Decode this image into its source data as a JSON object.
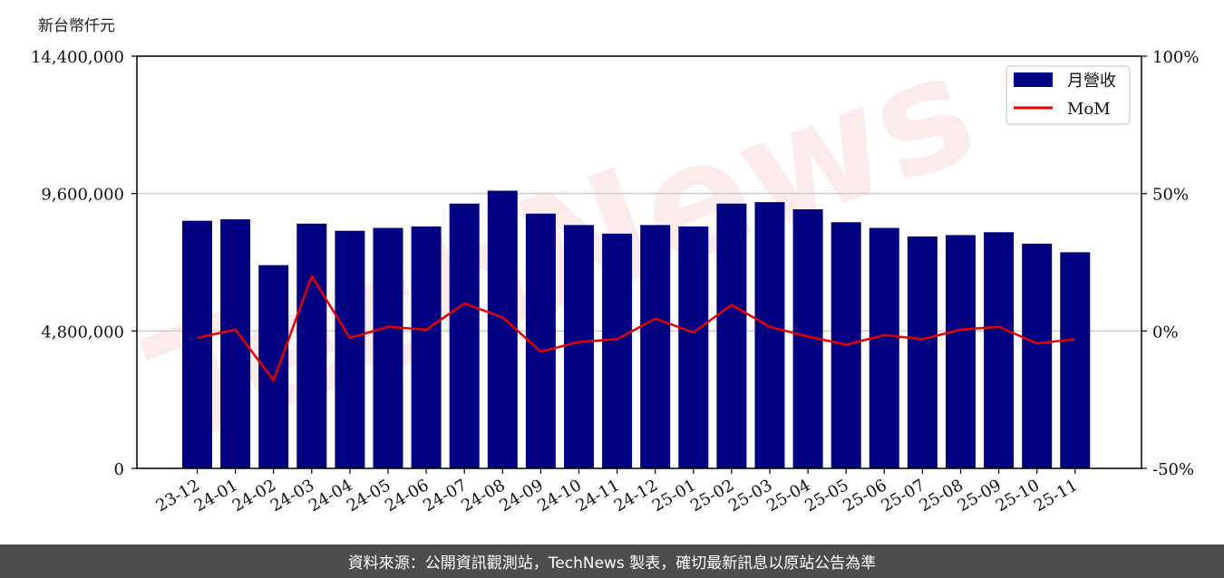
{
  "unit_label": "新台幣仟元",
  "footer_text": "資料來源：公開資訊觀測站，TechNews 製表，確切最新訊息以原站公告為準",
  "watermark": "TechNews",
  "chart_data": {
    "type": "bar",
    "categories": [
      "23-12",
      "24-01",
      "24-02",
      "24-03",
      "24-04",
      "24-05",
      "24-06",
      "24-07",
      "24-08",
      "24-09",
      "24-10",
      "24-11",
      "24-12",
      "25-01",
      "25-02",
      "25-03",
      "25-04",
      "25-05",
      "25-06",
      "25-07",
      "25-08",
      "25-09",
      "25-10",
      "25-11"
    ],
    "series": [
      {
        "name": "月營收",
        "axis": "left",
        "type": "bar",
        "color": "#000080",
        "values": [
          8650000,
          8700000,
          7100000,
          8550000,
          8300000,
          8400000,
          8450000,
          9250000,
          9700000,
          8900000,
          8500000,
          8200000,
          8500000,
          8450000,
          9250000,
          9300000,
          9050000,
          8600000,
          8400000,
          8100000,
          8150000,
          8250000,
          7850000,
          7550000
        ]
      },
      {
        "name": "MoM",
        "axis": "right",
        "type": "line",
        "color": "#e60000",
        "values": [
          -2.5,
          0.5,
          -18,
          20,
          -2.5,
          1.5,
          0.5,
          10,
          5,
          -7.5,
          -4,
          -3,
          4.5,
          -0.5,
          9.5,
          1.5,
          -2,
          -5,
          -1.5,
          -3,
          0.5,
          1.5,
          -4.5,
          -3
        ]
      }
    ],
    "y_left": {
      "ylim": [
        0,
        14400000
      ],
      "ticks": [
        "0",
        "4,800,000",
        "9,600,000",
        "14,400,000"
      ],
      "tick_values": [
        0,
        4800000,
        9600000,
        14400000
      ]
    },
    "y_right": {
      "ylim": [
        -50,
        100
      ],
      "ticks": [
        "-50%",
        "0%",
        "50%",
        "100%"
      ],
      "tick_values": [
        -50,
        0,
        50,
        100
      ]
    },
    "grid": "horizontal",
    "legend_position": "top-right"
  }
}
